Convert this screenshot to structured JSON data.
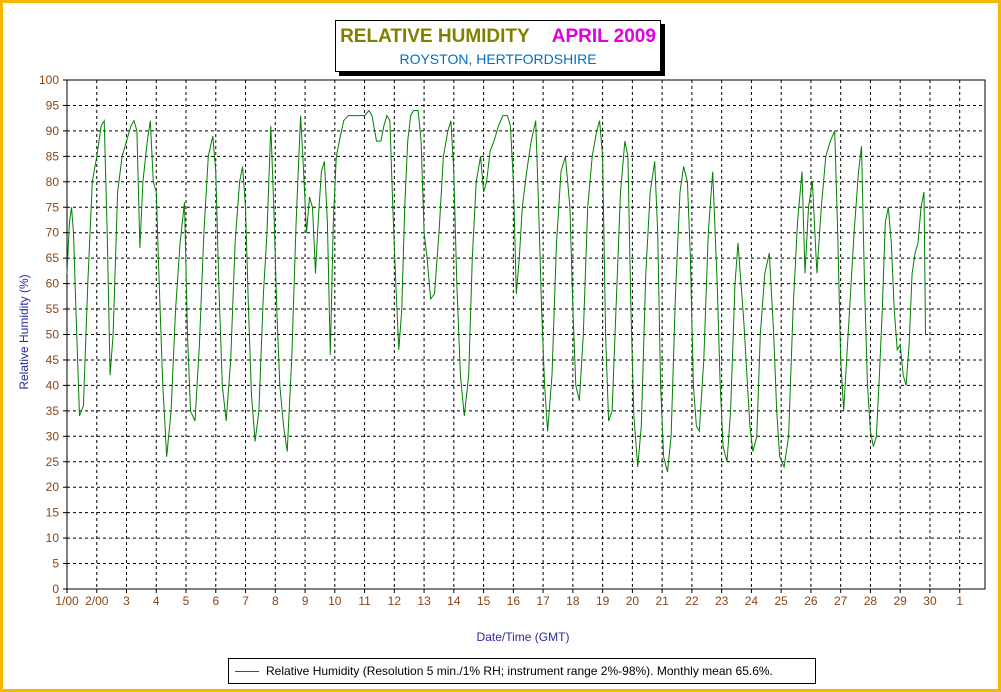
{
  "chart_data": {
    "type": "line",
    "title": "RELATIVE HUMIDITY",
    "title_period": "APRIL 2009",
    "subtitle": "ROYSTON, HERTFORDSHIRE",
    "xlabel": "Date/Time (GMT)",
    "ylabel": "Relative Humidity (%)",
    "ylim": [
      0,
      100
    ],
    "yticks": [
      0,
      5,
      10,
      15,
      20,
      25,
      30,
      35,
      40,
      45,
      50,
      55,
      60,
      65,
      70,
      75,
      80,
      85,
      90,
      95,
      100
    ],
    "xlim": [
      1,
      31.85
    ],
    "x_ticks": [
      {
        "x": 1,
        "label": "1/00"
      },
      {
        "x": 2,
        "label": "2/00"
      },
      {
        "x": 3,
        "label": "3"
      },
      {
        "x": 4,
        "label": "4"
      },
      {
        "x": 5,
        "label": "5"
      },
      {
        "x": 6,
        "label": "6"
      },
      {
        "x": 7,
        "label": "7"
      },
      {
        "x": 8,
        "label": "8"
      },
      {
        "x": 9,
        "label": "9"
      },
      {
        "x": 10,
        "label": "10"
      },
      {
        "x": 11,
        "label": "11"
      },
      {
        "x": 12,
        "label": "12"
      },
      {
        "x": 13,
        "label": "13"
      },
      {
        "x": 14,
        "label": "14"
      },
      {
        "x": 15,
        "label": "15"
      },
      {
        "x": 16,
        "label": "16"
      },
      {
        "x": 17,
        "label": "17"
      },
      {
        "x": 18,
        "label": "18"
      },
      {
        "x": 19,
        "label": "19"
      },
      {
        "x": 20,
        "label": "20"
      },
      {
        "x": 21,
        "label": "21"
      },
      {
        "x": 22,
        "label": "22"
      },
      {
        "x": 23,
        "label": "23"
      },
      {
        "x": 24,
        "label": "24"
      },
      {
        "x": 25,
        "label": "25"
      },
      {
        "x": 26,
        "label": "26"
      },
      {
        "x": 27,
        "label": "27"
      },
      {
        "x": 28,
        "label": "28"
      },
      {
        "x": 29,
        "label": "29"
      },
      {
        "x": 30,
        "label": "30"
      },
      {
        "x": 31,
        "label": "1"
      }
    ],
    "grid": true,
    "legend_position": "bottom",
    "series": [
      {
        "name": "Relative Humidity (Resolution 5 min./1% RH; instrument range 2%-98%). Monthly mean 65.6%.",
        "color": "#008000",
        "points": [
          [
            1.0,
            62
          ],
          [
            1.08,
            72
          ],
          [
            1.15,
            75
          ],
          [
            1.22,
            70
          ],
          [
            1.3,
            55
          ],
          [
            1.42,
            34
          ],
          [
            1.55,
            36
          ],
          [
            1.7,
            60
          ],
          [
            1.85,
            80
          ],
          [
            2.0,
            85
          ],
          [
            2.15,
            91
          ],
          [
            2.25,
            92
          ],
          [
            2.35,
            70
          ],
          [
            2.45,
            42
          ],
          [
            2.55,
            50
          ],
          [
            2.7,
            78
          ],
          [
            2.85,
            85
          ],
          [
            3.0,
            88
          ],
          [
            3.15,
            91
          ],
          [
            3.25,
            92
          ],
          [
            3.35,
            90
          ],
          [
            3.45,
            67
          ],
          [
            3.55,
            80
          ],
          [
            3.7,
            88
          ],
          [
            3.8,
            92
          ],
          [
            3.9,
            80
          ],
          [
            4.0,
            78
          ],
          [
            4.1,
            60
          ],
          [
            4.22,
            40
          ],
          [
            4.35,
            26
          ],
          [
            4.5,
            35
          ],
          [
            4.65,
            55
          ],
          [
            4.8,
            68
          ],
          [
            4.95,
            76
          ],
          [
            5.05,
            50
          ],
          [
            5.15,
            35
          ],
          [
            5.3,
            33
          ],
          [
            5.45,
            48
          ],
          [
            5.6,
            70
          ],
          [
            5.75,
            85
          ],
          [
            5.9,
            89
          ],
          [
            6.0,
            82
          ],
          [
            6.1,
            60
          ],
          [
            6.22,
            40
          ],
          [
            6.35,
            33
          ],
          [
            6.5,
            45
          ],
          [
            6.65,
            68
          ],
          [
            6.8,
            80
          ],
          [
            6.9,
            83
          ],
          [
            7.0,
            75
          ],
          [
            7.1,
            55
          ],
          [
            7.2,
            38
          ],
          [
            7.32,
            29
          ],
          [
            7.45,
            35
          ],
          [
            7.6,
            58
          ],
          [
            7.72,
            70
          ],
          [
            7.85,
            91
          ],
          [
            7.95,
            75
          ],
          [
            8.05,
            55
          ],
          [
            8.15,
            40
          ],
          [
            8.28,
            32
          ],
          [
            8.4,
            27
          ],
          [
            8.55,
            45
          ],
          [
            8.7,
            72
          ],
          [
            8.85,
            93
          ],
          [
            8.95,
            82
          ],
          [
            9.05,
            70
          ],
          [
            9.15,
            77
          ],
          [
            9.25,
            75
          ],
          [
            9.35,
            62
          ],
          [
            9.45,
            73
          ],
          [
            9.55,
            82
          ],
          [
            9.65,
            84
          ],
          [
            9.75,
            72
          ],
          [
            9.85,
            46
          ],
          [
            9.95,
            72
          ],
          [
            10.05,
            85
          ],
          [
            10.15,
            88
          ],
          [
            10.3,
            92
          ],
          [
            10.45,
            93
          ],
          [
            10.6,
            93
          ],
          [
            10.8,
            93
          ],
          [
            11.0,
            93
          ],
          [
            11.15,
            94
          ],
          [
            11.25,
            93
          ],
          [
            11.4,
            88
          ],
          [
            11.55,
            88
          ],
          [
            11.65,
            91
          ],
          [
            11.75,
            93
          ],
          [
            11.85,
            92
          ],
          [
            11.95,
            75
          ],
          [
            12.05,
            60
          ],
          [
            12.15,
            47
          ],
          [
            12.25,
            55
          ],
          [
            12.35,
            75
          ],
          [
            12.45,
            88
          ],
          [
            12.55,
            93
          ],
          [
            12.65,
            94
          ],
          [
            12.8,
            94
          ],
          [
            12.9,
            88
          ],
          [
            13.0,
            70
          ],
          [
            13.1,
            65
          ],
          [
            13.22,
            57
          ],
          [
            13.35,
            58
          ],
          [
            13.5,
            70
          ],
          [
            13.65,
            85
          ],
          [
            13.8,
            90
          ],
          [
            13.9,
            92
          ],
          [
            14.0,
            82
          ],
          [
            14.1,
            60
          ],
          [
            14.22,
            42
          ],
          [
            14.35,
            34
          ],
          [
            14.5,
            42
          ],
          [
            14.62,
            65
          ],
          [
            14.75,
            80
          ],
          [
            14.9,
            85
          ],
          [
            15.0,
            78
          ],
          [
            15.1,
            80
          ],
          [
            15.22,
            86
          ],
          [
            15.35,
            88
          ],
          [
            15.5,
            91
          ],
          [
            15.65,
            93
          ],
          [
            15.8,
            93
          ],
          [
            15.9,
            91
          ],
          [
            16.0,
            80
          ],
          [
            16.1,
            58
          ],
          [
            16.2,
            65
          ],
          [
            16.3,
            75
          ],
          [
            16.45,
            82
          ],
          [
            16.6,
            88
          ],
          [
            16.75,
            92
          ],
          [
            16.85,
            75
          ],
          [
            16.95,
            55
          ],
          [
            17.05,
            40
          ],
          [
            17.15,
            31
          ],
          [
            17.3,
            42
          ],
          [
            17.45,
            68
          ],
          [
            17.6,
            82
          ],
          [
            17.75,
            85
          ],
          [
            17.9,
            75
          ],
          [
            18.0,
            55
          ],
          [
            18.1,
            40
          ],
          [
            18.22,
            37
          ],
          [
            18.35,
            50
          ],
          [
            18.5,
            75
          ],
          [
            18.65,
            85
          ],
          [
            18.8,
            90
          ],
          [
            18.9,
            92
          ],
          [
            19.0,
            85
          ],
          [
            19.1,
            50
          ],
          [
            19.2,
            33
          ],
          [
            19.32,
            35
          ],
          [
            19.45,
            55
          ],
          [
            19.6,
            78
          ],
          [
            19.75,
            88
          ],
          [
            19.85,
            85
          ],
          [
            19.95,
            55
          ],
          [
            20.05,
            34
          ],
          [
            20.18,
            24
          ],
          [
            20.3,
            32
          ],
          [
            20.45,
            62
          ],
          [
            20.6,
            78
          ],
          [
            20.75,
            84
          ],
          [
            20.85,
            70
          ],
          [
            20.95,
            40
          ],
          [
            21.05,
            26
          ],
          [
            21.18,
            23
          ],
          [
            21.3,
            30
          ],
          [
            21.45,
            58
          ],
          [
            21.6,
            78
          ],
          [
            21.72,
            83
          ],
          [
            21.85,
            80
          ],
          [
            21.95,
            65
          ],
          [
            22.05,
            40
          ],
          [
            22.15,
            32
          ],
          [
            22.25,
            31
          ],
          [
            22.4,
            45
          ],
          [
            22.55,
            70
          ],
          [
            22.7,
            82
          ],
          [
            22.85,
            60
          ],
          [
            22.95,
            40
          ],
          [
            23.05,
            28
          ],
          [
            23.18,
            25
          ],
          [
            23.3,
            35
          ],
          [
            23.45,
            60
          ],
          [
            23.55,
            68
          ],
          [
            23.65,
            60
          ],
          [
            23.75,
            52
          ],
          [
            23.85,
            42
          ],
          [
            23.95,
            32
          ],
          [
            24.05,
            27
          ],
          [
            24.18,
            30
          ],
          [
            24.3,
            50
          ],
          [
            24.45,
            62
          ],
          [
            24.6,
            66
          ],
          [
            24.75,
            50
          ],
          [
            24.85,
            35
          ],
          [
            24.95,
            26
          ],
          [
            25.1,
            24
          ],
          [
            25.25,
            30
          ],
          [
            25.4,
            55
          ],
          [
            25.55,
            72
          ],
          [
            25.7,
            82
          ],
          [
            25.8,
            62
          ],
          [
            25.92,
            75
          ],
          [
            26.05,
            80
          ],
          [
            26.2,
            62
          ],
          [
            26.35,
            75
          ],
          [
            26.5,
            85
          ],
          [
            26.65,
            88
          ],
          [
            26.8,
            90
          ],
          [
            26.9,
            70
          ],
          [
            27.0,
            45
          ],
          [
            27.1,
            35
          ],
          [
            27.2,
            45
          ],
          [
            27.3,
            55
          ],
          [
            27.45,
            70
          ],
          [
            27.6,
            82
          ],
          [
            27.7,
            87
          ],
          [
            27.8,
            60
          ],
          [
            27.9,
            40
          ],
          [
            28.0,
            31
          ],
          [
            28.1,
            28
          ],
          [
            28.2,
            30
          ],
          [
            28.3,
            42
          ],
          [
            28.4,
            55
          ],
          [
            28.5,
            72
          ],
          [
            28.6,
            75
          ],
          [
            28.7,
            68
          ],
          [
            28.8,
            55
          ],
          [
            28.9,
            47
          ],
          [
            29.0,
            48
          ],
          [
            29.1,
            42
          ],
          [
            29.2,
            40
          ],
          [
            29.3,
            48
          ],
          [
            29.4,
            62
          ],
          [
            29.5,
            66
          ],
          [
            29.6,
            68
          ],
          [
            29.7,
            75
          ],
          [
            29.8,
            78
          ],
          [
            29.85,
            50
          ]
        ]
      }
    ]
  }
}
